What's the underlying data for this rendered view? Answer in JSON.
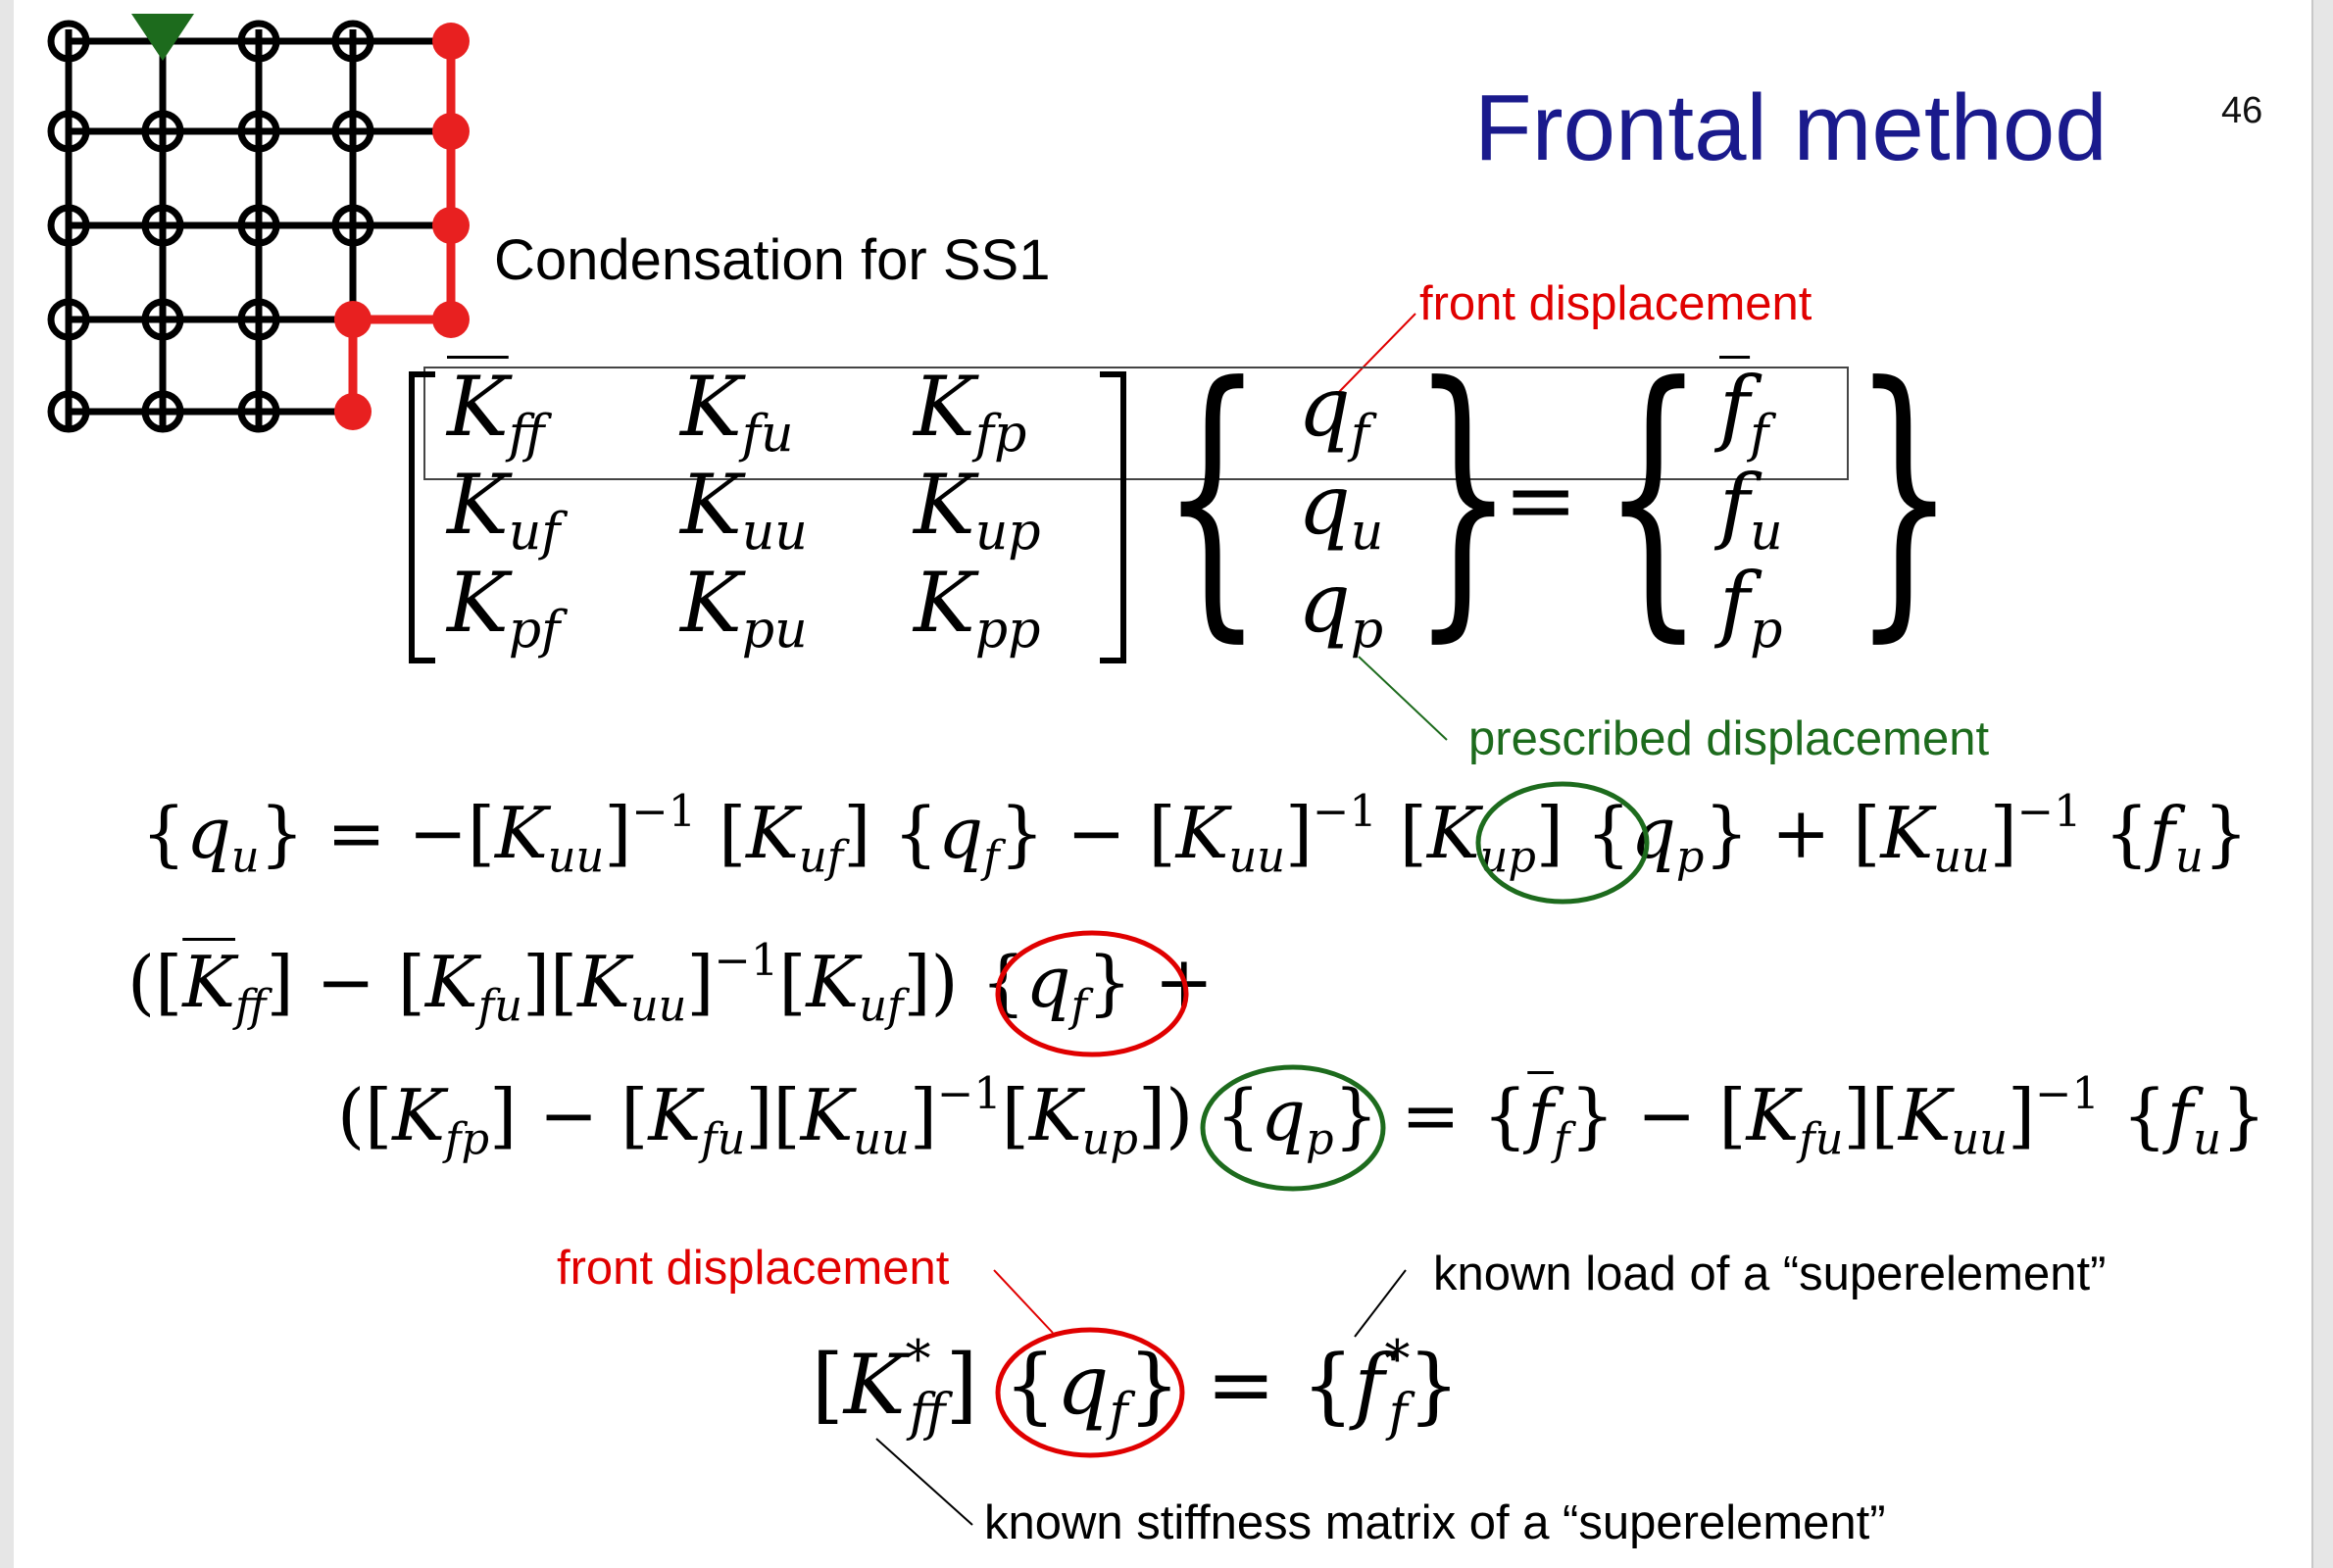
{
  "title": "Frontal method",
  "page_number": "46",
  "subtitle": "Condensation for SS1",
  "labels": {
    "front_displacement_top": "front displacement",
    "prescribed_displacement": "prescribed displacement",
    "front_displacement_bottom": "front displacement",
    "known_load": "known load of a “superelement”",
    "known_stiffness": "known stiffness matrix of a “superelement”"
  },
  "colors": {
    "title": "#1a1a8c",
    "front": "#e00000",
    "prescribed": "#1d6b1d",
    "grid": "#000000",
    "background": "#ffffff"
  },
  "mesh": {
    "description_icon": "mesh-grid-icon",
    "front_color": "#e00000",
    "support_marker_color": "#1d6b1d"
  }
}
